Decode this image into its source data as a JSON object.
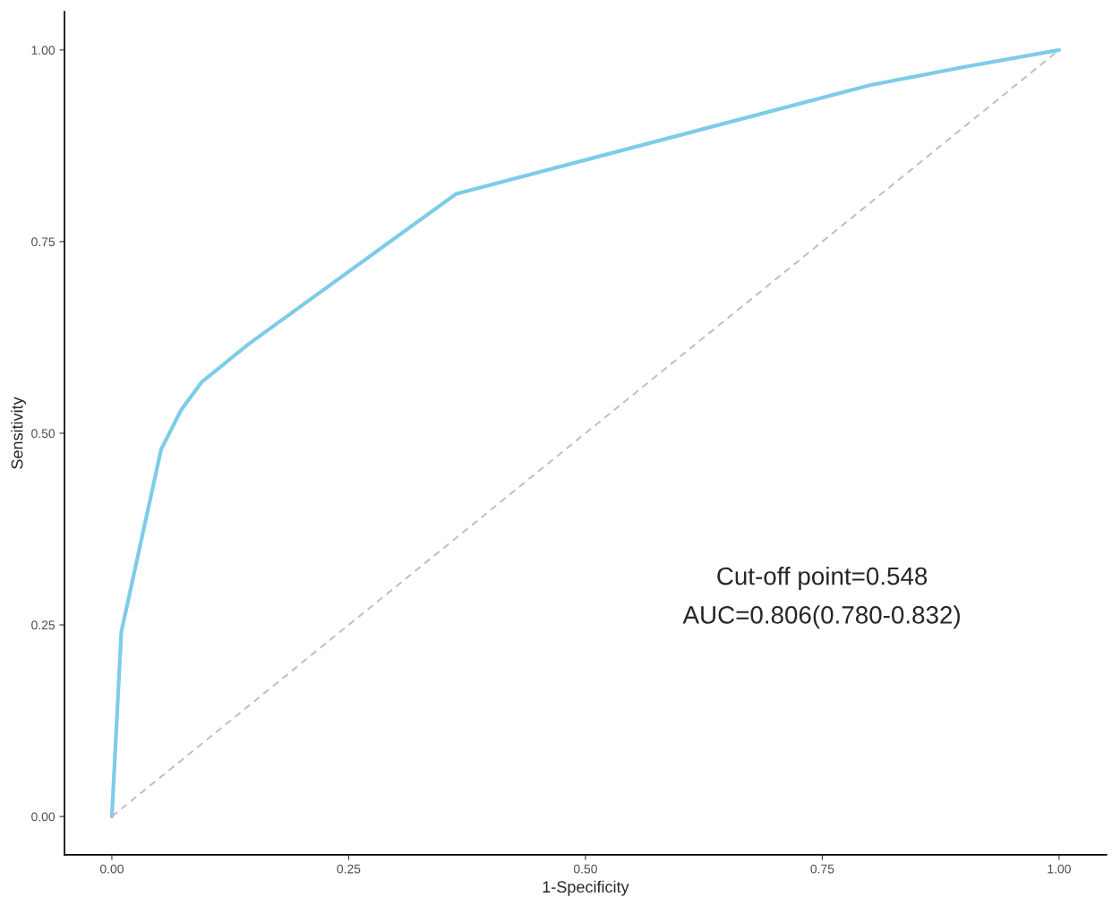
{
  "chart_data": {
    "type": "line",
    "xlabel": "1-Specificity",
    "ylabel": "Sensitivity",
    "x": [
      0,
      0.01,
      0.052,
      0.073,
      0.095,
      0.144,
      0.363,
      0.8,
      0.9,
      1
    ],
    "series": [
      {
        "color": "#7ecbea",
        "values": [
          0,
          0.241,
          0.479,
          0.53,
          0.567,
          0.616,
          0.812,
          0.954,
          0.978,
          1
        ],
        "line_style": "solid"
      },
      {
        "color": "#bebebe",
        "x": [
          0,
          1
        ],
        "values": [
          0,
          1
        ],
        "line_style": "dashed"
      }
    ],
    "xlim": [
      -0.05,
      1.05
    ],
    "ylim": [
      -0.05,
      1.05
    ],
    "xticks": [
      {
        "value": 0,
        "label": "0.00"
      },
      {
        "value": 0.25,
        "label": "0.25"
      },
      {
        "value": 0.5,
        "label": "0.50"
      },
      {
        "value": 0.75,
        "label": "0.75"
      },
      {
        "value": 1,
        "label": "1.00"
      }
    ],
    "yticks": [
      {
        "value": 0,
        "label": "0.00"
      },
      {
        "value": 0.25,
        "label": "0.25"
      },
      {
        "value": 0.5,
        "label": "0.50"
      },
      {
        "value": 0.75,
        "label": "0.75"
      },
      {
        "value": 1,
        "label": "1.00"
      }
    ],
    "annotations": [
      "Cut-off point=0.548",
      "AUC=0.806(0.780-0.832)"
    ],
    "grid": false,
    "legend": false
  }
}
